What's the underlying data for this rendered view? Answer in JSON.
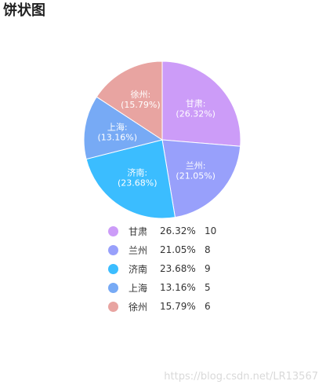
{
  "header": {
    "title": "饼状图"
  },
  "watermark": "https://blog.csdn.net/LR13567",
  "chart_data": {
    "type": "pie",
    "title": "饼状图",
    "categories": [
      "甘肃",
      "兰州",
      "济南",
      "上海",
      "徐州"
    ],
    "values": [
      10,
      8,
      9,
      5,
      6
    ],
    "percent_labels": [
      "26.32%",
      "21.05%",
      "23.68%",
      "13.16%",
      "15.79%"
    ],
    "slice_labels": [
      "(26.32%)",
      "(21.05%)",
      "(23.68%)",
      "(13.16%)",
      "(15.79%)"
    ],
    "name_labels": [
      "甘肃:",
      "兰州:",
      "济南:",
      "上海:",
      "徐州:"
    ],
    "colors": [
      "#cc9cf8",
      "#98a0fb",
      "#3bbdff",
      "#77aaf5",
      "#e8a4a1"
    ],
    "legend_position": "bottom"
  }
}
